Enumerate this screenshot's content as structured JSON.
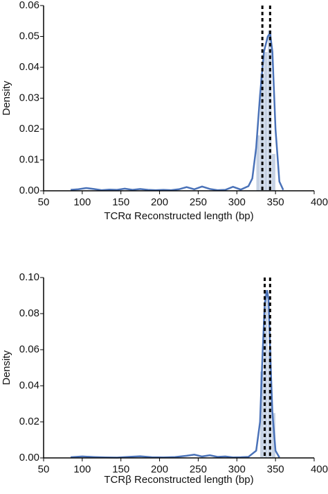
{
  "chart_data": [
    {
      "type": "histogram",
      "x_label": "TCRα Reconstructed length (bp)",
      "y_label": "Density",
      "bins": [
        325,
        330,
        335,
        340,
        345,
        350
      ],
      "values": [
        0.018,
        0.038,
        0.045,
        0.052,
        0.012
      ],
      "color": "#b9c7de",
      "kde": {
        "color": "#4a72b8",
        "x": [
          85,
          95,
          105,
          115,
          125,
          135,
          145,
          155,
          165,
          175,
          185,
          195,
          205,
          215,
          225,
          235,
          245,
          255,
          265,
          275,
          285,
          295,
          305,
          315,
          320,
          325,
          330,
          335,
          340,
          343,
          346,
          350,
          355,
          360
        ],
        "values": [
          0.0003,
          0.0005,
          0.0009,
          0.0006,
          0.0002,
          0.0004,
          0.0003,
          0.0007,
          0.0003,
          0.0006,
          0.0003,
          0.0002,
          0.0003,
          0.0002,
          0.0005,
          0.0012,
          0.0005,
          0.0014,
          0.0006,
          0.0002,
          0.0003,
          0.0013,
          0.0004,
          0.0015,
          0.004,
          0.014,
          0.031,
          0.045,
          0.05,
          0.051,
          0.045,
          0.02,
          0.003,
          0.0003
        ]
      },
      "vlines": [
        333,
        343
      ],
      "vline_color": "#000000",
      "xlim": [
        50,
        400
      ],
      "ylim": [
        0,
        0.06
      ],
      "xticks": [
        50,
        100,
        150,
        200,
        250,
        300,
        350,
        400
      ],
      "yticks": [
        {
          "value": 0,
          "label": "0.00"
        },
        0.01,
        0.02,
        0.03,
        0.04,
        0.05,
        0.06
      ]
    },
    {
      "type": "histogram",
      "x_label": "TCRβ Reconstructed length (bp)",
      "y_label": "Density",
      "bins": [
        330,
        335,
        340,
        345,
        350
      ],
      "values": [
        0.048,
        0.093,
        0.06,
        0.025
      ],
      "color": "#b9c7de",
      "kde": {
        "color": "#4a72b8",
        "x": [
          85,
          100,
          115,
          130,
          145,
          160,
          175,
          190,
          205,
          220,
          235,
          245,
          255,
          265,
          275,
          285,
          295,
          305,
          315,
          325,
          330,
          333,
          336,
          339,
          341,
          343,
          346,
          350,
          355
        ],
        "values": [
          0.0004,
          0.0008,
          0.0005,
          0.0003,
          0.0002,
          0.0006,
          0.0009,
          0.0004,
          0.0003,
          0.0005,
          0.0012,
          0.0018,
          0.0008,
          0.0015,
          0.0006,
          0.0008,
          0.0003,
          0.0004,
          0.0006,
          0.004,
          0.02,
          0.055,
          0.085,
          0.093,
          0.088,
          0.06,
          0.025,
          0.004,
          0.0003
        ]
      },
      "vlines": [
        336,
        343
      ],
      "vline_color": "#000000",
      "xlim": [
        50,
        400
      ],
      "ylim": [
        0,
        0.1
      ],
      "xticks": [
        50,
        100,
        150,
        200,
        250,
        300,
        350,
        400
      ],
      "yticks": [
        {
          "value": 0,
          "label": "0.00"
        },
        0.02,
        0.04,
        0.06,
        0.08,
        {
          "value": 0.1,
          "label": "0.10"
        }
      ]
    }
  ]
}
